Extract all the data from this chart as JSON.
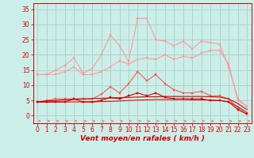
{
  "background_color": "#cceee8",
  "grid_color": "#aad4ce",
  "x_values": [
    0,
    1,
    2,
    3,
    4,
    5,
    6,
    7,
    8,
    9,
    10,
    11,
    12,
    13,
    14,
    15,
    16,
    17,
    18,
    19,
    20,
    21,
    22,
    23
  ],
  "series": [
    {
      "color": "#ff9999",
      "linewidth": 0.8,
      "marker": "s",
      "markersize": 1.8,
      "values": [
        13.5,
        13.5,
        15.0,
        16.5,
        19.0,
        14.0,
        15.5,
        20.0,
        26.5,
        23.0,
        18.0,
        32.0,
        32.0,
        25.0,
        24.5,
        23.0,
        24.5,
        22.0,
        24.5,
        24.0,
        23.5,
        16.0,
        5.5,
        3.0
      ]
    },
    {
      "color": "#ff9999",
      "linewidth": 0.8,
      "marker": "s",
      "markersize": 1.8,
      "values": [
        13.5,
        13.5,
        13.5,
        14.5,
        16.0,
        13.5,
        13.5,
        14.5,
        16.0,
        18.0,
        17.0,
        18.5,
        19.0,
        18.5,
        20.0,
        18.5,
        19.5,
        19.0,
        20.5,
        21.5,
        21.5,
        17.0,
        5.0,
        3.0
      ]
    },
    {
      "color": "#ff5555",
      "linewidth": 0.8,
      "marker": "s",
      "markersize": 1.8,
      "values": [
        4.5,
        5.0,
        5.5,
        5.5,
        5.5,
        5.5,
        5.5,
        7.0,
        9.5,
        7.5,
        10.5,
        14.5,
        11.5,
        13.5,
        10.5,
        8.5,
        7.5,
        7.5,
        8.0,
        6.5,
        6.5,
        5.5,
        2.5,
        0.5
      ]
    },
    {
      "color": "#dd0000",
      "linewidth": 0.8,
      "marker": "s",
      "markersize": 1.8,
      "values": [
        4.5,
        4.5,
        4.5,
        4.5,
        5.5,
        4.5,
        4.5,
        5.0,
        6.0,
        5.5,
        6.5,
        7.5,
        6.5,
        7.5,
        6.0,
        5.5,
        5.5,
        5.5,
        5.5,
        5.0,
        5.0,
        4.5,
        2.0,
        0.5
      ]
    },
    {
      "color": "#cc0000",
      "linewidth": 0.8,
      "marker": null,
      "markersize": 0,
      "values": [
        4.5,
        4.8,
        5.0,
        5.2,
        5.4,
        5.5,
        5.6,
        5.7,
        5.8,
        5.9,
        6.0,
        6.1,
        6.2,
        6.2,
        6.3,
        6.3,
        6.3,
        6.3,
        6.3,
        6.2,
        6.1,
        5.5,
        4.0,
        2.0
      ]
    },
    {
      "color": "#cc0000",
      "linewidth": 0.7,
      "marker": null,
      "markersize": 0,
      "values": [
        4.5,
        4.5,
        4.5,
        4.5,
        4.5,
        4.5,
        4.5,
        4.6,
        4.7,
        4.8,
        5.0,
        5.1,
        5.2,
        5.3,
        5.3,
        5.3,
        5.3,
        5.2,
        5.2,
        5.1,
        5.0,
        4.5,
        3.0,
        1.0
      ]
    }
  ],
  "xlabel": "Vent moyen/en rafales ( km/h )",
  "ylim": [
    -2.5,
    37
  ],
  "xlim": [
    -0.5,
    23.5
  ],
  "yticks": [
    0,
    5,
    10,
    15,
    20,
    25,
    30,
    35
  ],
  "xticks": [
    0,
    1,
    2,
    3,
    4,
    5,
    6,
    7,
    8,
    9,
    10,
    11,
    12,
    13,
    14,
    15,
    16,
    17,
    18,
    19,
    20,
    21,
    22,
    23
  ],
  "arrow_color": "#ff6666",
  "tick_color": "#dd0000",
  "xlabel_color": "#cc0000",
  "spine_color": "#cc0000",
  "tick_fontsize": 5.5,
  "xlabel_fontsize": 6.5
}
